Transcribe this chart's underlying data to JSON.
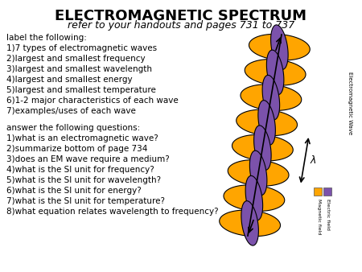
{
  "title": "ELECTROMAGNETIC SPECTRUM",
  "subtitle": "refer to your handouts and pages 731 to 737",
  "left_text_block1": [
    "label the following:",
    "1)7 types of electromagnetic waves",
    "2)largest and smallest frequency",
    "3)largest and smallest wavelength",
    "4)largest and smallest energy",
    "5)largest and smallest temperature",
    "6)1-2 major characteristics of each wave",
    "7)examples/uses of each wave"
  ],
  "left_text_block2": [
    "answer the following questions:",
    "1)what is an electromagnetic wave?",
    "2)summarize bottom of page 734",
    "3)does an EM wave require a medium?",
    "4)what is the SI unit for frequency?",
    "5)what is the SI unit for wavelength?",
    "6)what is the SI unit for energy?",
    "7)what is the SI unit for temperature?",
    "8)what equation relates wavelength to frequency?"
  ],
  "bg_color": "#ffffff",
  "title_fontsize": 13,
  "subtitle_fontsize": 9,
  "body_fontsize": 7.5,
  "orange_color": "#FFA500",
  "purple_color": "#7B52AB",
  "legend_label1": "Magnetic field",
  "legend_label2": "Electric field",
  "em_wave_label": "Electromagnetic Wave"
}
